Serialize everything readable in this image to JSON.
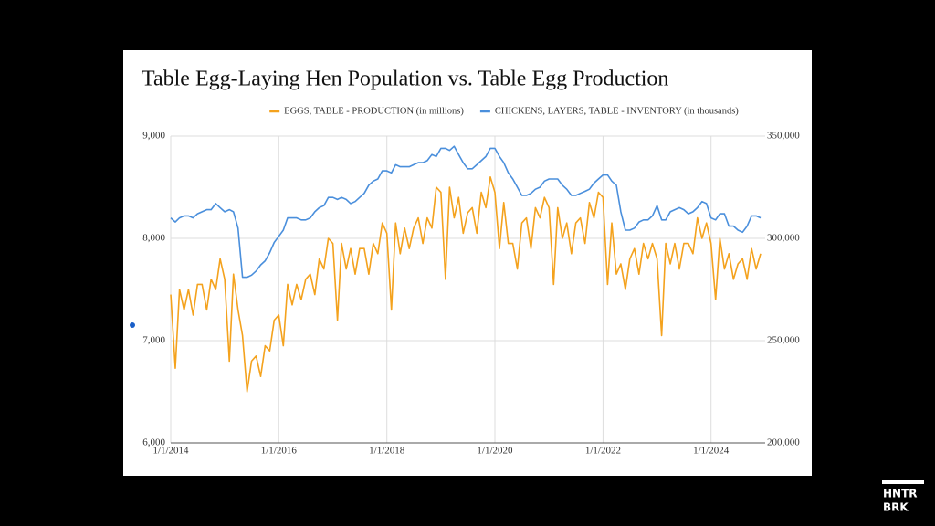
{
  "chart_data": {
    "type": "line",
    "title": "Table Egg-Laying Hen Population vs. Table Egg Production",
    "x": [
      "1/1/2014",
      "2/1/2014",
      "3/1/2014",
      "4/1/2014",
      "5/1/2014",
      "6/1/2014",
      "7/1/2014",
      "8/1/2014",
      "9/1/2014",
      "10/1/2014",
      "11/1/2014",
      "12/1/2014",
      "1/1/2015",
      "2/1/2015",
      "3/1/2015",
      "4/1/2015",
      "5/1/2015",
      "6/1/2015",
      "7/1/2015",
      "8/1/2015",
      "9/1/2015",
      "10/1/2015",
      "11/1/2015",
      "12/1/2015",
      "1/1/2016",
      "2/1/2016",
      "3/1/2016",
      "4/1/2016",
      "5/1/2016",
      "6/1/2016",
      "7/1/2016",
      "8/1/2016",
      "9/1/2016",
      "10/1/2016",
      "11/1/2016",
      "12/1/2016",
      "1/1/2017",
      "2/1/2017",
      "3/1/2017",
      "4/1/2017",
      "5/1/2017",
      "6/1/2017",
      "7/1/2017",
      "8/1/2017",
      "9/1/2017",
      "10/1/2017",
      "11/1/2017",
      "12/1/2017",
      "1/1/2018",
      "2/1/2018",
      "3/1/2018",
      "4/1/2018",
      "5/1/2018",
      "6/1/2018",
      "7/1/2018",
      "8/1/2018",
      "9/1/2018",
      "10/1/2018",
      "11/1/2018",
      "12/1/2018",
      "1/1/2019",
      "2/1/2019",
      "3/1/2019",
      "4/1/2019",
      "5/1/2019",
      "6/1/2019",
      "7/1/2019",
      "8/1/2019",
      "9/1/2019",
      "10/1/2019",
      "11/1/2019",
      "12/1/2019",
      "1/1/2020",
      "2/1/2020",
      "3/1/2020",
      "4/1/2020",
      "5/1/2020",
      "6/1/2020",
      "7/1/2020",
      "8/1/2020",
      "9/1/2020",
      "10/1/2020",
      "11/1/2020",
      "12/1/2020",
      "1/1/2021",
      "2/1/2021",
      "3/1/2021",
      "4/1/2021",
      "5/1/2021",
      "6/1/2021",
      "7/1/2021",
      "8/1/2021",
      "9/1/2021",
      "10/1/2021",
      "11/1/2021",
      "12/1/2021",
      "1/1/2022",
      "2/1/2022",
      "3/1/2022",
      "4/1/2022",
      "5/1/2022",
      "6/1/2022",
      "7/1/2022",
      "8/1/2022",
      "9/1/2022",
      "10/1/2022",
      "11/1/2022",
      "12/1/2022",
      "1/1/2023",
      "2/1/2023",
      "3/1/2023",
      "4/1/2023",
      "5/1/2023",
      "6/1/2023",
      "7/1/2023",
      "8/1/2023",
      "9/1/2023",
      "10/1/2023",
      "11/1/2023",
      "12/1/2023",
      "1/1/2024",
      "2/1/2024",
      "3/1/2024",
      "4/1/2024",
      "5/1/2024",
      "6/1/2024",
      "7/1/2024",
      "8/1/2024",
      "9/1/2024",
      "10/1/2024",
      "11/1/2024",
      "12/1/2024"
    ],
    "series": [
      {
        "name": "EGGS, TABLE - PRODUCTION (in millions)",
        "color": "#f4a21d",
        "axis": "y",
        "values": [
          7450,
          6730,
          7500,
          7300,
          7500,
          7250,
          7550,
          7550,
          7300,
          7600,
          7500,
          7800,
          7600,
          6800,
          7650,
          7300,
          7050,
          6500,
          6800,
          6850,
          6650,
          6950,
          6900,
          7200,
          7250,
          6950,
          7550,
          7350,
          7550,
          7400,
          7600,
          7650,
          7450,
          7800,
          7700,
          8000,
          7950,
          7200,
          7950,
          7700,
          7900,
          7650,
          7900,
          7900,
          7650,
          7950,
          7850,
          8150,
          8050,
          7300,
          8150,
          7850,
          8100,
          7900,
          8100,
          8200,
          7950,
          8200,
          8100,
          8500,
          8450,
          7600,
          8500,
          8200,
          8400,
          8050,
          8250,
          8300,
          8050,
          8450,
          8300,
          8600,
          8450,
          7900,
          8350,
          7950,
          7950,
          7700,
          8150,
          8200,
          7900,
          8300,
          8200,
          8400,
          8300,
          7550,
          8300,
          8000,
          8150,
          7850,
          8150,
          8200,
          7950,
          8350,
          8200,
          8450,
          8400,
          7550,
          8150,
          7650,
          7750,
          7500,
          7800,
          7900,
          7650,
          7950,
          7800,
          7950,
          7800,
          7050,
          7950,
          7750,
          7950,
          7700,
          7950,
          7950,
          7850,
          8200,
          8000,
          8150,
          7950,
          7400,
          8000,
          7700,
          7850,
          7600,
          7750,
          7800,
          7600,
          7900,
          7700,
          7850
        ]
      },
      {
        "name": "CHICKENS, LAYERS, TABLE - INVENTORY (in thousands)",
        "color": "#4a8fdc",
        "axis": "y2",
        "values": [
          310000,
          308000,
          310000,
          311000,
          311000,
          310000,
          312000,
          313000,
          314000,
          314000,
          317000,
          315000,
          313000,
          314000,
          313000,
          305000,
          281000,
          281000,
          282000,
          284000,
          287000,
          289000,
          293000,
          298000,
          301000,
          304000,
          310000,
          310000,
          310000,
          309000,
          309000,
          310000,
          313000,
          315000,
          316000,
          320000,
          320000,
          319000,
          320000,
          319000,
          317000,
          318000,
          320000,
          322000,
          326000,
          328000,
          329000,
          333000,
          333000,
          332000,
          336000,
          335000,
          335000,
          335000,
          336000,
          337000,
          337000,
          338000,
          341000,
          340000,
          344000,
          344000,
          343000,
          345000,
          341000,
          337000,
          334000,
          334000,
          336000,
          338000,
          340000,
          344000,
          344000,
          340000,
          337000,
          332000,
          329000,
          325000,
          321000,
          321000,
          322000,
          324000,
          325000,
          328000,
          329000,
          329000,
          329000,
          326000,
          324000,
          321000,
          321000,
          322000,
          323000,
          324000,
          327000,
          329000,
          331000,
          331000,
          328000,
          326000,
          313000,
          304000,
          304000,
          305000,
          308000,
          309000,
          309000,
          311000,
          316000,
          309000,
          309000,
          313000,
          314000,
          315000,
          314000,
          312000,
          313000,
          315000,
          318000,
          317000,
          310000,
          309000,
          312000,
          312000,
          306000,
          306000,
          304000,
          303000,
          306000,
          311000,
          311000,
          310000
        ]
      }
    ],
    "xlim": [
      "1/1/2014",
      "1/1/2025"
    ],
    "xticks": [
      "1/1/2014",
      "1/1/2016",
      "1/1/2018",
      "1/1/2020",
      "1/1/2022",
      "1/1/2024"
    ],
    "ylim": [
      6000,
      9000
    ],
    "yticks": [
      {
        "value": 6000,
        "label": "6,000"
      },
      {
        "value": 7000,
        "label": "7,000"
      },
      {
        "value": 8000,
        "label": "8,000"
      },
      {
        "value": 9000,
        "label": "9,000"
      }
    ],
    "y2lim": [
      200000,
      350000
    ],
    "y2ticks": [
      {
        "value": 200000,
        "label": "200,000"
      },
      {
        "value": 250000,
        "label": "250,000"
      },
      {
        "value": 300000,
        "label": "300,000"
      },
      {
        "value": 350000,
        "label": "350,000"
      }
    ],
    "grid": true,
    "legend": "top"
  },
  "logo": {
    "line1": "HNTR",
    "line2": "BRK"
  }
}
